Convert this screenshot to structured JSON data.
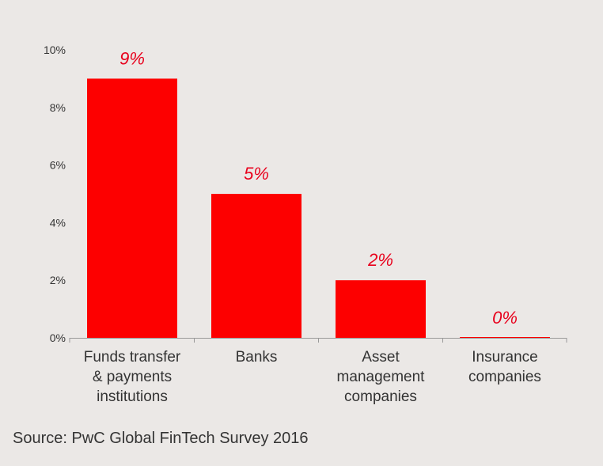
{
  "chart_data": {
    "type": "bar",
    "categories": [
      [
        "Funds transfer",
        "& payments",
        "institutions"
      ],
      [
        "Banks"
      ],
      [
        "Asset",
        "management",
        "companies"
      ],
      [
        "Insurance",
        "companies"
      ]
    ],
    "values": [
      9,
      5,
      2,
      0
    ],
    "data_labels": [
      "9%",
      "5%",
      "2%",
      "0%"
    ],
    "y_ticks": [
      "0%",
      "2%",
      "4%",
      "6%",
      "8%",
      "10%"
    ],
    "ylim": [
      0,
      10
    ],
    "grid": false,
    "legend": "none",
    "title": "",
    "xlabel": "",
    "ylabel": ""
  },
  "source": "Source: PwC Global FinTech Survey 2016",
  "colors": {
    "bar": "#fd0000",
    "data_label": "#e8001c",
    "text": "#333333",
    "axis": "#999999",
    "background": "#ebe8e6"
  }
}
